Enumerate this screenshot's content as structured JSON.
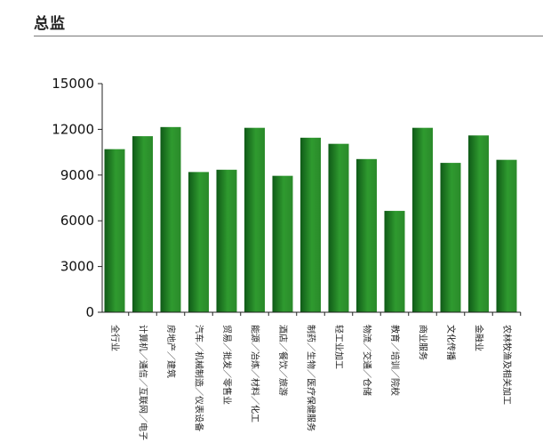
{
  "header": {
    "title": "总监"
  },
  "colors": {
    "bar_dark": "#0f5a17",
    "bar_mid": "#2f9a2f",
    "bar_light": "#2a8a2a",
    "axis": "#222222"
  },
  "chart_data": {
    "type": "bar",
    "title": "",
    "xlabel": "",
    "ylabel": "",
    "ylim": [
      0,
      15000
    ],
    "yticks": [
      0,
      3000,
      6000,
      9000,
      12000,
      15000
    ],
    "ytick_labels": [
      "0",
      "3000",
      "6000",
      "9000",
      "12000",
      "15000"
    ],
    "grid": false,
    "legend": "none",
    "categories": [
      "全行业",
      "计算机／通信／互联网／电子",
      "房地产／建筑",
      "汽车／机械制造／仪表设备",
      "贸易／批发／零售业",
      "能源／冶炼／材料／化工",
      "酒店／餐饮／旅游",
      "制药／生物／医疗保健服务",
      "轻工业加工",
      "物流／交通／仓储",
      "教育／培训／院校",
      "商业服务",
      "文化传播",
      "金融业",
      "农林牧渔及相关加工"
    ],
    "values": [
      10700,
      11550,
      12150,
      9200,
      9350,
      12100,
      8950,
      11450,
      11050,
      10050,
      6650,
      12100,
      9800,
      11600,
      10000
    ]
  }
}
